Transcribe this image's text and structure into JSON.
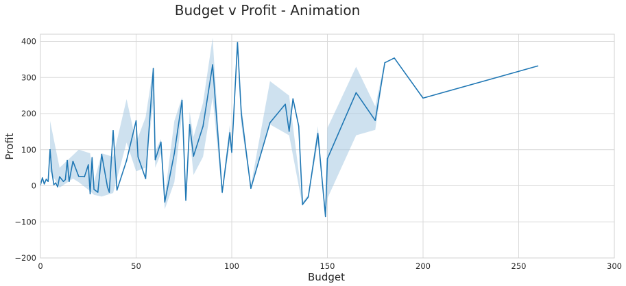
{
  "chart_data": {
    "type": "line",
    "title": "Budget v Profit - Animation",
    "xlabel": "Budget",
    "ylabel": "Profit",
    "xlim": [
      0,
      300
    ],
    "ylim": [
      -200,
      420
    ],
    "xticks": [
      0,
      50,
      100,
      150,
      200,
      250,
      300
    ],
    "yticks": [
      -200,
      -100,
      0,
      100,
      200,
      300,
      400
    ],
    "grid": true,
    "style": "seaborn-whitegrid",
    "colors": {
      "line": "#1f77b4",
      "band": "#a6c8e2",
      "grid": "#d9d9d9",
      "spine": "#d0d0d0",
      "text": "#262626"
    },
    "series": [
      {
        "x": [
          0,
          1,
          2,
          3,
          4,
          5,
          6,
          7,
          8,
          9,
          10,
          12,
          13,
          14,
          15,
          17,
          20,
          23,
          25,
          26,
          27,
          28,
          30,
          32,
          35,
          36,
          38,
          40,
          45,
          50,
          51,
          55,
          59,
          60,
          63,
          65,
          70,
          74,
          76,
          78,
          80,
          85,
          90,
          95,
          99,
          100,
          103,
          105,
          110,
          120,
          128,
          130,
          132,
          135,
          137,
          140,
          145,
          149,
          150,
          165,
          175,
          180,
          185,
          200,
          260
        ],
        "y": [
          2,
          22,
          5,
          18,
          12,
          100,
          38,
          3,
          8,
          -3,
          25,
          12,
          17,
          70,
          12,
          68,
          26,
          25,
          58,
          -22,
          78,
          -10,
          -18,
          87,
          -3,
          -18,
          153,
          -12,
          70,
          180,
          80,
          20,
          325,
          72,
          121,
          -45,
          90,
          237,
          -40,
          170,
          82,
          165,
          335,
          -18,
          147,
          93,
          397,
          200,
          -7,
          175,
          226,
          151,
          241,
          165,
          -52,
          -31,
          145,
          -85,
          75,
          258,
          181,
          341,
          354,
          243,
          332
        ],
        "ci_x": [
          5,
          10,
          17,
          20,
          26,
          28,
          32,
          38,
          45,
          50,
          55,
          59,
          60,
          63,
          65,
          70,
          74,
          76,
          78,
          80,
          85,
          90,
          95,
          99,
          100,
          103,
          105,
          110,
          120,
          130,
          137,
          140,
          145,
          149,
          150,
          165,
          175,
          180
        ],
        "ci_low": [
          40,
          -5,
          20,
          10,
          -15,
          -25,
          -30,
          -20,
          120,
          40,
          50,
          230,
          50,
          90,
          -65,
          10,
          200,
          -50,
          140,
          30,
          80,
          245,
          -25,
          120,
          80,
          380,
          170,
          -10,
          170,
          140,
          -55,
          -35,
          120,
          -90,
          -35,
          140,
          155,
          335
        ],
        "ci_high": [
          180,
          50,
          85,
          100,
          90,
          10,
          90,
          80,
          240,
          120,
          190,
          330,
          95,
          130,
          -30,
          180,
          245,
          -30,
          205,
          135,
          230,
          410,
          -10,
          170,
          115,
          400,
          225,
          0,
          290,
          250,
          -45,
          -25,
          165,
          -80,
          160,
          330,
          220,
          345
        ]
      }
    ]
  }
}
